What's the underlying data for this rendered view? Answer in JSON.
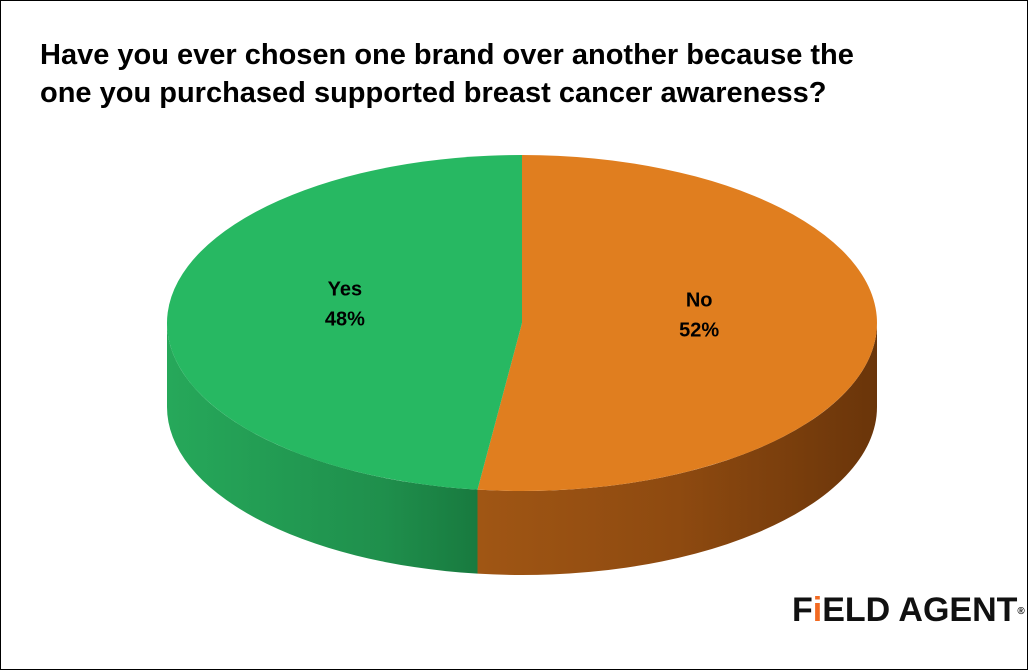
{
  "title_lines": [
    "Have you ever chosen one brand over another because the",
    "one you purchased supported breast cancer awareness?"
  ],
  "chart_data": {
    "type": "pie",
    "style": "3d",
    "title": "Have you ever chosen one brand over another because the one you purchased supported breast cancer awareness?",
    "slices": [
      {
        "label": "Yes",
        "value": 48,
        "display": "48%",
        "color": "#27b862"
      },
      {
        "label": "No",
        "value": 52,
        "display": "52%",
        "color": "#e07e1f"
      }
    ],
    "legend": "none"
  },
  "logo": {
    "text_before": "F",
    "dot_letter": "i",
    "text_after": "ELD AGENT",
    "registered": "®",
    "accent_color": "#f26a21"
  }
}
